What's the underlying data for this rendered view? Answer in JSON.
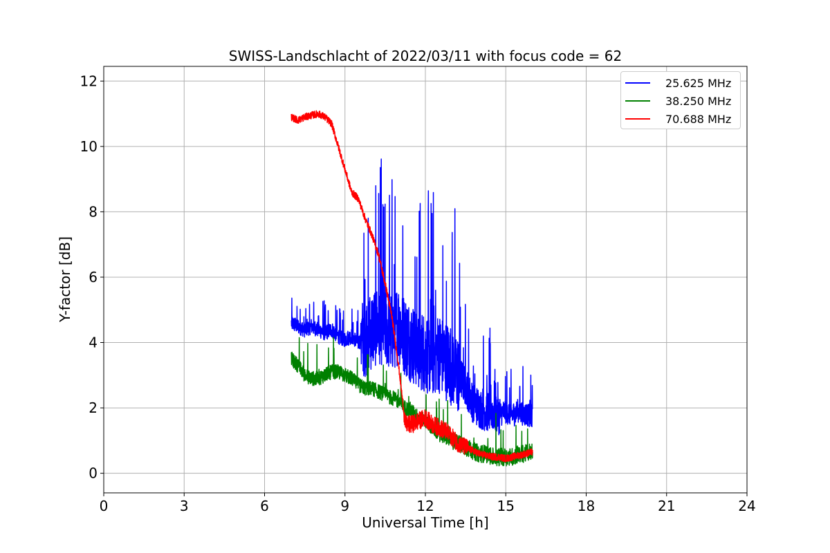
{
  "chart_data": {
    "type": "line",
    "title": "SWISS-Landschlacht of 2022/03/11 with focus code = 62",
    "xlabel": "Universal Time [h]",
    "ylabel": "Y-factor [dB]",
    "xlim": [
      0,
      24
    ],
    "ylim": [
      -0.6,
      12.45
    ],
    "xticks": [
      0,
      3,
      6,
      9,
      12,
      15,
      18,
      21,
      24
    ],
    "yticks": [
      0,
      2,
      4,
      6,
      8,
      10,
      12
    ],
    "grid": true,
    "legend_position": "top-right",
    "series": [
      {
        "name": "25.625 MHz",
        "color": "#0000ff",
        "x": [
          7.0,
          7.25,
          7.5,
          7.75,
          8.0,
          8.25,
          8.5,
          8.75,
          9.0,
          9.25,
          9.5,
          9.75,
          10.0,
          10.25,
          10.5,
          10.75,
          11.0,
          11.25,
          11.5,
          11.75,
          12.0,
          12.25,
          12.5,
          12.75,
          13.0,
          13.25,
          13.5,
          13.75,
          14.0,
          14.25,
          14.5,
          14.75,
          15.0,
          15.25,
          15.5,
          15.75,
          16.0
        ],
        "y": [
          4.6,
          4.5,
          4.4,
          4.5,
          4.4,
          4.3,
          4.4,
          4.2,
          4.1,
          4.2,
          4.0,
          4.2,
          4.4,
          4.6,
          4.5,
          4.3,
          4.6,
          4.2,
          4.0,
          3.8,
          3.7,
          3.6,
          3.7,
          3.5,
          3.3,
          3.0,
          2.7,
          2.2,
          2.0,
          1.9,
          1.9,
          1.8,
          1.9,
          1.8,
          1.9,
          1.8,
          1.8
        ]
      },
      {
        "name": "38.250 MHz",
        "color": "#008000",
        "x": [
          7.0,
          7.25,
          7.5,
          7.75,
          8.0,
          8.25,
          8.5,
          8.75,
          9.0,
          9.25,
          9.5,
          9.75,
          10.0,
          10.25,
          10.5,
          10.75,
          11.0,
          11.25,
          11.5,
          11.75,
          12.0,
          12.25,
          12.5,
          12.75,
          13.0,
          13.25,
          13.5,
          13.75,
          14.0,
          14.25,
          14.5,
          14.75,
          15.0,
          15.25,
          15.5,
          15.75,
          16.0
        ],
        "y": [
          3.5,
          3.3,
          3.0,
          2.9,
          2.9,
          3.0,
          3.1,
          3.1,
          3.0,
          2.9,
          2.7,
          2.6,
          2.6,
          2.5,
          2.4,
          2.3,
          2.2,
          2.0,
          1.9,
          1.7,
          1.6,
          1.4,
          1.2,
          1.1,
          1.0,
          0.9,
          0.8,
          0.7,
          0.6,
          0.6,
          0.5,
          0.5,
          0.5,
          0.5,
          0.6,
          0.6,
          0.7
        ]
      },
      {
        "name": "70.688 MHz",
        "color": "#ff0000",
        "x": [
          7.0,
          7.25,
          7.5,
          7.75,
          8.0,
          8.25,
          8.5,
          8.75,
          9.0,
          9.25,
          9.5,
          9.75,
          10.0,
          10.25,
          10.5,
          10.75,
          11.0,
          11.25,
          11.5,
          11.75,
          12.0,
          12.25,
          12.5,
          12.75,
          13.0,
          13.25,
          13.5,
          13.75,
          14.0,
          14.25,
          14.5,
          14.75,
          15.0,
          15.25,
          15.5,
          15.75,
          16.0
        ],
        "y": [
          10.9,
          10.8,
          10.9,
          10.95,
          11.0,
          10.9,
          10.7,
          10.0,
          9.3,
          8.6,
          8.4,
          7.8,
          7.3,
          6.7,
          5.8,
          4.8,
          3.3,
          1.5,
          1.5,
          1.6,
          1.7,
          1.5,
          1.4,
          1.3,
          1.1,
          0.9,
          0.8,
          0.7,
          0.6,
          0.55,
          0.5,
          0.5,
          0.45,
          0.5,
          0.55,
          0.6,
          0.65
        ]
      }
    ]
  }
}
